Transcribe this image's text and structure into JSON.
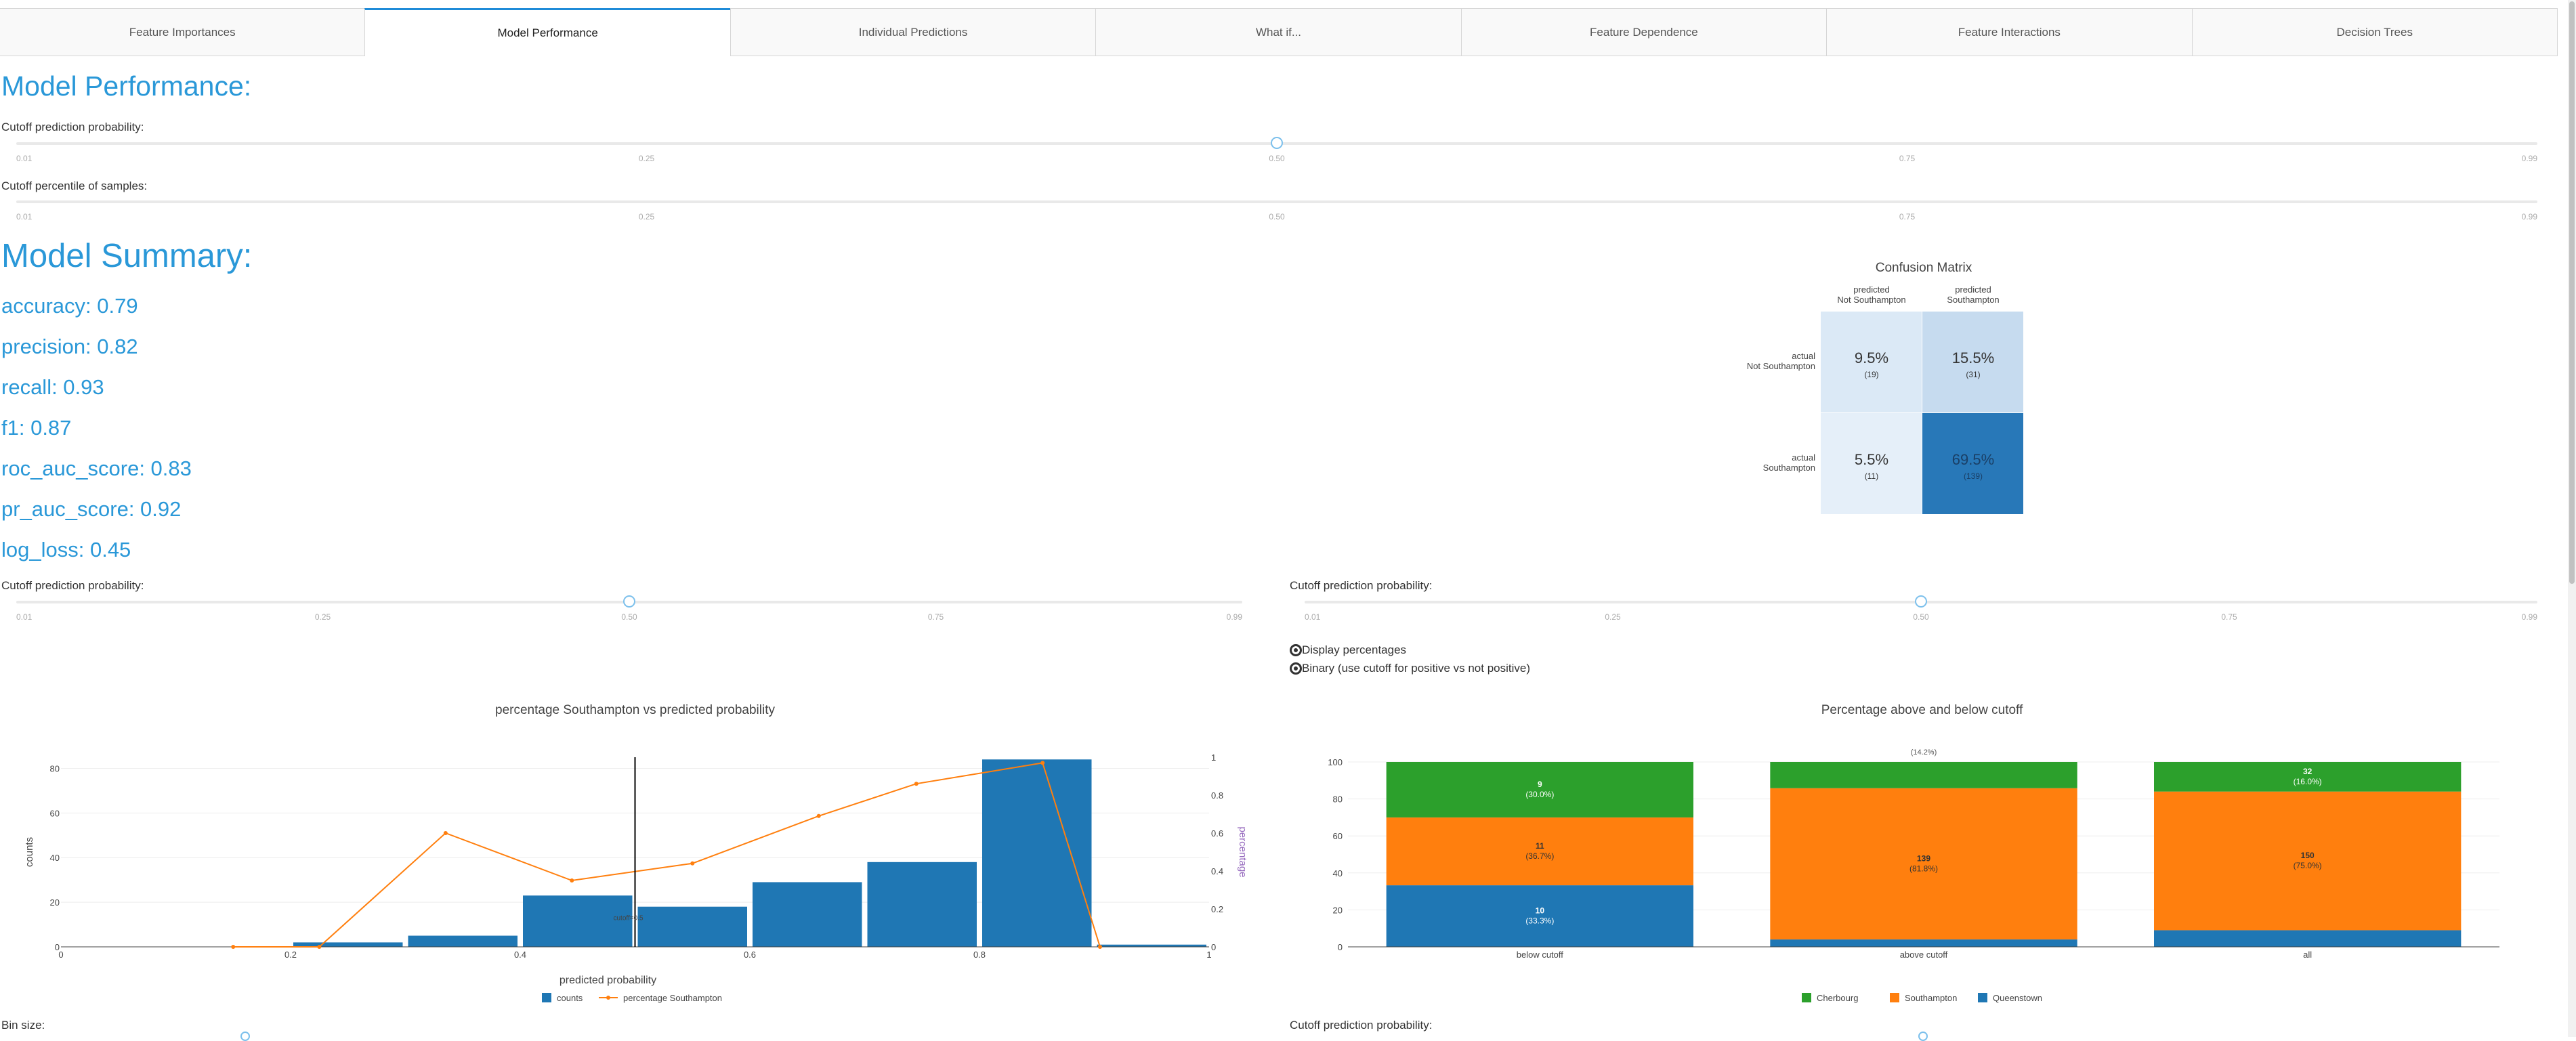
{
  "tabs": [
    "Feature Importances",
    "Model Performance",
    "Individual Predictions",
    "What if...",
    "Feature Dependence",
    "Feature Interactions",
    "Decision Trees"
  ],
  "active_tab": 1,
  "page_heading": "Model Performance:",
  "cutoff_label": "Cutoff prediction probability:",
  "percentile_label": "Cutoff percentile of samples:",
  "bin_label": "Bin size:",
  "slider_ticks": [
    "0.01",
    "0.25",
    "0.50",
    "0.75",
    "0.99"
  ],
  "top_cutoff_value": 0.5,
  "summary": {
    "heading": "Model Summary:",
    "metrics": [
      "accuracy: 0.79",
      "precision: 0.82",
      "recall: 0.93",
      "f1: 0.87",
      "roc_auc_score: 0.83",
      "pr_auc_score: 0.92",
      "log_loss: 0.45"
    ]
  },
  "confusion": {
    "title": "Confusion Matrix",
    "col_labels": [
      [
        "predicted",
        "Not Southampton"
      ],
      [
        "predicted",
        "Southampton"
      ]
    ],
    "row_labels": [
      [
        "actual",
        "Not Southampton"
      ],
      [
        "actual",
        "Southampton"
      ]
    ],
    "cells": [
      {
        "pct": "9.5%",
        "count": "(19)",
        "color": "#dbe9f6"
      },
      {
        "pct": "15.5%",
        "count": "(31)",
        "color": "#c6dbef"
      },
      {
        "pct": "5.5%",
        "count": "(11)",
        "color": "#e5eff9"
      },
      {
        "pct": "69.5%",
        "count": "(139)",
        "color": "#2878b8"
      }
    ]
  },
  "radio": {
    "opt1": "Display percentages",
    "opt2": "Binary (use cutoff for positive vs not positive)"
  },
  "chart_data": [
    {
      "type": "bar",
      "title": "percentage Southampton vs predicted probability",
      "xlabel": "predicted probability",
      "ylabel": "counts",
      "y2label": "percentage",
      "x_bins": [
        0.0,
        0.1,
        0.2,
        0.3,
        0.4,
        0.5,
        0.6,
        0.7,
        0.8,
        0.9
      ],
      "counts": [
        0,
        0,
        2,
        5,
        23,
        18,
        29,
        38,
        84,
        1
      ],
      "percentage_line": [
        {
          "x": 0.15,
          "y": 0.0
        },
        {
          "x": 0.225,
          "y": 0.0
        },
        {
          "x": 0.335,
          "y": 0.6
        },
        {
          "x": 0.445,
          "y": 0.35
        },
        {
          "x": 0.55,
          "y": 0.44
        },
        {
          "x": 0.66,
          "y": 0.69
        },
        {
          "x": 0.745,
          "y": 0.86
        },
        {
          "x": 0.855,
          "y": 0.97
        },
        {
          "x": 0.905,
          "y": 0.0
        }
      ],
      "cutoff_x": 0.5,
      "cutoff_label": "cutoff=0.5",
      "xlim": [
        0,
        1
      ],
      "ylim": [
        0,
        85
      ],
      "y2lim": [
        0,
        1
      ],
      "x_ticks": [
        "0",
        "0.2",
        "0.4",
        "0.6",
        "0.8",
        "1"
      ],
      "y_ticks": [
        "0",
        "20",
        "40",
        "60",
        "80"
      ],
      "y2_ticks": [
        "0",
        "0.2",
        "0.4",
        "0.6",
        "0.8",
        "1"
      ],
      "legend": [
        "counts",
        "percentage Southampton"
      ],
      "colors": {
        "bar": "#1f77b4",
        "line": "#ff7f0e",
        "y2": "#9467bd"
      }
    },
    {
      "type": "bar",
      "title": "Percentage above and below cutoff",
      "categories": [
        "below cutoff",
        "above cutoff",
        "all"
      ],
      "series": [
        {
          "name": "Queenstown",
          "values": [
            33.3,
            4.0,
            9.0
          ],
          "labels": [
            "10\n(33.3%)",
            "",
            ""
          ],
          "color": "#1f77b4"
        },
        {
          "name": "Southampton",
          "values": [
            36.7,
            81.8,
            75.0
          ],
          "labels": [
            "11\n(36.7%)",
            "139\n(81.8%)",
            "150\n(75.0%)"
          ],
          "color": "#ff7f0e"
        },
        {
          "name": "Cherbourg",
          "values": [
            30.0,
            14.2,
            16.0
          ],
          "labels": [
            "9\n(30.0%)",
            "",
            "32\n(16.0%)"
          ],
          "color": "#2ca02c"
        }
      ],
      "overflow_label": "(14.2%)",
      "ylim": [
        0,
        100
      ],
      "y_ticks": [
        "0",
        "20",
        "40",
        "60",
        "80",
        "100"
      ],
      "legend": [
        "Cherbourg",
        "Southampton",
        "Queenstown"
      ]
    }
  ]
}
